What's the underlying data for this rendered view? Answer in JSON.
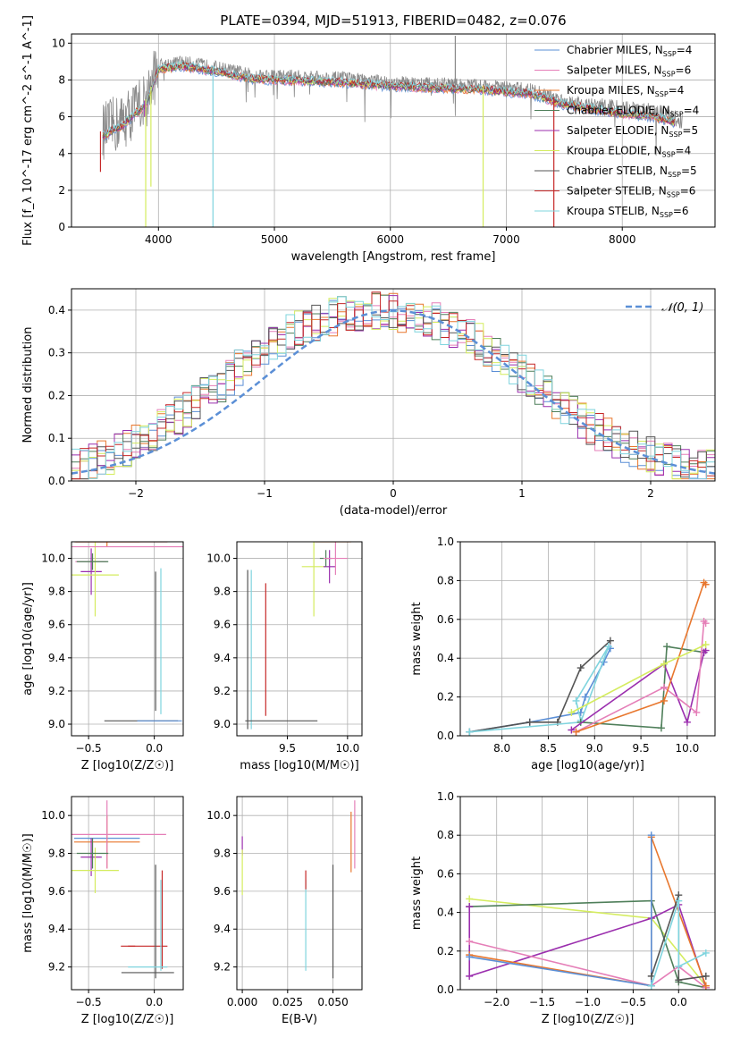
{
  "figure_title": "PLATE=0394, MJD=51913, FIBERID=0482, z=0.076",
  "colors": {
    "Chabrier MILES": "#5b8fd6",
    "Salpeter MILES": "#e57fb8",
    "Kroupa MILES": "#e8772e",
    "Chabrier ELODIE": "#4f7f5a",
    "Salpeter ELODIE": "#9b2fae",
    "Kroupa ELODIE": "#d4ec5e",
    "Chabrier STELIB": "#555555",
    "Salpeter STELIB": "#c62828",
    "Kroupa STELIB": "#7fd4de"
  },
  "chart_data": [
    {
      "id": "spectrum",
      "type": "line",
      "title": "PLATE=0394, MJD=51913, FIBERID=0482, z=0.076",
      "xlabel": "wavelength [Angstrom, rest frame]",
      "ylabel": "Flux [f_λ 10^-17 erg cm^-2 s^-1 A^-1]",
      "xlim": [
        3250,
        8800
      ],
      "ylim": [
        0,
        10.5
      ],
      "xticks": [
        4000,
        5000,
        6000,
        7000,
        8000
      ],
      "yticks": [
        0,
        2,
        4,
        6,
        8,
        10
      ],
      "legend_position": "top-right",
      "legend": [
        {
          "name": "Chabrier MILES, N_SSP=4"
        },
        {
          "name": "Salpeter MILES, N_SSP=6"
        },
        {
          "name": "Kroupa MILES, N_SSP=4"
        },
        {
          "name": "Chabrier ELODIE, N_SSP=4"
        },
        {
          "name": "Salpeter ELODIE, N_SSP=5"
        },
        {
          "name": "Kroupa ELODIE, N_SSP=4"
        },
        {
          "name": "Chabrier STELIB, N_SSP=5"
        },
        {
          "name": "Salpeter STELIB, N_SSP=6"
        },
        {
          "name": "Kroupa STELIB, N_SSP=6"
        }
      ],
      "continuum": {
        "x": [
          3520,
          3700,
          3900,
          4000,
          4200,
          4500,
          4800,
          5200,
          5600,
          6000,
          6400,
          6800,
          7200,
          7500,
          7900,
          8300,
          8500
        ],
        "y": [
          5.2,
          5.8,
          7.0,
          8.8,
          9.0,
          8.7,
          8.3,
          8.2,
          8.1,
          7.9,
          7.8,
          7.7,
          7.5,
          6.9,
          6.5,
          6.2,
          5.8
        ]
      },
      "dips": [
        {
          "x": 3890,
          "y": 0,
          "model": "Kroupa ELODIE"
        },
        {
          "x": 3935,
          "y": 2.2,
          "model": "Kroupa ELODIE"
        },
        {
          "x": 4470,
          "y": 0,
          "model": "Kroupa STELIB"
        },
        {
          "x": 6800,
          "y": 0,
          "model": "Kroupa ELODIE"
        },
        {
          "x": 7410,
          "y": 0,
          "model": "Salpeter STELIB"
        }
      ],
      "spikes": [
        {
          "x": 3500,
          "y": 3.0,
          "model": "Salpeter STELIB"
        },
        {
          "x": 3880,
          "y": 6.0,
          "model": "Salpeter ELODIE"
        },
        {
          "x": 6560,
          "y": 10.4,
          "model": "observed"
        }
      ]
    },
    {
      "id": "residuals",
      "type": "step",
      "xlabel": "(data-model)/error",
      "ylabel": "Normed distribution",
      "xlim": [
        -2.5,
        2.5
      ],
      "ylim": [
        0,
        0.45
      ],
      "xticks": [
        -2,
        -1,
        0,
        1,
        2
      ],
      "yticks": [
        0.0,
        0.1,
        0.2,
        0.3,
        0.4
      ],
      "legend_position": "top-right",
      "gaussian_label": "𝒩(0, 1)",
      "bin_edges_start": -2.5,
      "bin_width": 0.1,
      "base_values": [
        0.035,
        0.04,
        0.046,
        0.053,
        0.06,
        0.068,
        0.078,
        0.088,
        0.098,
        0.11,
        0.124,
        0.138,
        0.152,
        0.166,
        0.182,
        0.198,
        0.214,
        0.23,
        0.246,
        0.262,
        0.278,
        0.294,
        0.31,
        0.324,
        0.336,
        0.346,
        0.356,
        0.364,
        0.372,
        0.378,
        0.384,
        0.388,
        0.392,
        0.395,
        0.397,
        0.398,
        0.397,
        0.395,
        0.392,
        0.388,
        0.384,
        0.378,
        0.372,
        0.364,
        0.356,
        0.346,
        0.336,
        0.324,
        0.31,
        0.296,
        0.282,
        0.266,
        0.25,
        0.234,
        0.218,
        0.202,
        0.186,
        0.17,
        0.156,
        0.142,
        0.128,
        0.116,
        0.104,
        0.094,
        0.084,
        0.076,
        0.068,
        0.061,
        0.054,
        0.048,
        0.043,
        0.039,
        0.035,
        0.032,
        0.03
      ]
    },
    {
      "id": "age-vs-z",
      "type": "errorbar",
      "xlabel": "Z [log10(Z/Z☉)]",
      "ylabel": "age  [log10(age/yr)]",
      "xlim": [
        -0.63,
        0.22
      ],
      "ylim": [
        8.93,
        10.1
      ],
      "xticks": [
        -0.5,
        0.0
      ],
      "yticks": [
        9.0,
        9.2,
        9.4,
        9.6,
        9.8,
        10.0
      ],
      "points": [
        {
          "model": "Salpeter MILES",
          "x": -0.48,
          "y": 9.98,
          "xerr": 0.12,
          "yerr": 0.05
        },
        {
          "model": "Kroupa MILES",
          "x": -0.36,
          "y": 10.1,
          "xerr": 0.25,
          "yerr": 0.03
        },
        {
          "model": "Salpeter ELODIE",
          "x": -0.48,
          "y": 9.92,
          "xerr": 0.08,
          "yerr": 0.14
        },
        {
          "model": "Kroupa ELODIE",
          "x": -0.45,
          "y": 9.9,
          "xerr": 0.18,
          "yerr": 0.25
        },
        {
          "model": "Chabrier ELODIE",
          "x": -0.47,
          "y": 9.98,
          "xerr": 0.12,
          "yerr": 0.05
        },
        {
          "model": "Chabrier STELIB",
          "x": 0.01,
          "y": 9.5,
          "xerr": 0.0,
          "yerr": 0.42
        },
        {
          "model": "Kroupa STELIB",
          "x": 0.05,
          "y": 9.5,
          "xerr": 0.0,
          "yerr": 0.44
        },
        {
          "model": "Chabrier STELIB",
          "x": -0.1,
          "y": 9.02,
          "xerr": 0.28,
          "yerr": 0.0
        },
        {
          "model": "Salpeter STELIB",
          "x": -0.25,
          "y": 10.1,
          "xerr": 0.35,
          "yerr": 0.0
        },
        {
          "model": "Salpeter MILES",
          "x": -0.18,
          "y": 10.07,
          "xerr": 0.45,
          "yerr": 0.0
        },
        {
          "model": "Chabrier MILES",
          "x": 0.04,
          "y": 9.02,
          "xerr": 0.17,
          "yerr": 0.0
        }
      ]
    },
    {
      "id": "age-vs-mass",
      "type": "errorbar",
      "xlabel": "mass [log10(M/M☉)]",
      "ylabel": "",
      "xlim": [
        9.08,
        10.12
      ],
      "ylim": [
        8.93,
        10.1
      ],
      "xticks": [
        9.5,
        10.0
      ],
      "yticks": [
        9.0,
        9.2,
        9.4,
        9.6,
        9.8,
        10.0
      ],
      "points": [
        {
          "model": "Kroupa ELODIE",
          "x": 9.72,
          "y": 9.95,
          "xerr": 0.1,
          "yerr": 0.3
        },
        {
          "model": "Salpeter ELODIE",
          "x": 9.85,
          "y": 9.95,
          "xerr": 0.05,
          "yerr": 0.1
        },
        {
          "model": "Chabrier ELODIE",
          "x": 9.82,
          "y": 10.0,
          "xerr": 0.05,
          "yerr": 0.05
        },
        {
          "model": "Salpeter MILES",
          "x": 9.9,
          "y": 10.0,
          "xerr": 0.1,
          "yerr": 0.1
        },
        {
          "model": "Kroupa MILES",
          "x": 9.88,
          "y": 10.1,
          "xerr": 0.15,
          "yerr": 0.0
        },
        {
          "model": "Salpeter STELIB",
          "x": 9.32,
          "y": 9.45,
          "xerr": 0.0,
          "yerr": 0.4
        },
        {
          "model": "Chabrier STELIB",
          "x": 9.17,
          "y": 9.45,
          "xerr": 0.0,
          "yerr": 0.48
        },
        {
          "model": "Kroupa STELIB",
          "x": 9.2,
          "y": 9.45,
          "xerr": 0.0,
          "yerr": 0.48
        },
        {
          "model": "Chabrier STELIB",
          "x": 9.45,
          "y": 9.02,
          "xerr": 0.3,
          "yerr": 0.0
        }
      ]
    },
    {
      "id": "massweight-vs-age",
      "type": "line",
      "xlabel": "age  [log10(age/yr)]",
      "ylabel": "mass weight",
      "xlim": [
        7.55,
        10.3
      ],
      "ylim": [
        0.0,
        1.0
      ],
      "xticks": [
        8.0,
        8.5,
        9.0,
        9.5,
        10.0
      ],
      "yticks": [
        0.0,
        0.2,
        0.4,
        0.6,
        0.8,
        1.0
      ],
      "grid": true,
      "series": [
        {
          "model": "Chabrier MILES",
          "x": [
            7.65,
            8.3,
            8.85,
            8.9,
            9.1,
            9.17
          ],
          "y": [
            0.02,
            0.07,
            0.12,
            0.2,
            0.38,
            0.45
          ]
        },
        {
          "model": "Chabrier STELIB",
          "x": [
            7.65,
            8.3,
            8.6,
            8.85,
            9.17
          ],
          "y": [
            0.02,
            0.07,
            0.07,
            0.35,
            0.49
          ]
        },
        {
          "model": "Kroupa STELIB",
          "x": [
            7.65,
            8.85,
            9.15,
            8.8,
            8.85
          ],
          "y": [
            0.02,
            0.07,
            0.46,
            0.18,
            0.08
          ]
        },
        {
          "model": "Chabrier ELODIE",
          "x": [
            8.85,
            9.72,
            9.78,
            10.18
          ],
          "y": [
            0.07,
            0.04,
            0.46,
            0.43
          ]
        },
        {
          "model": "Salpeter ELODIE",
          "x": [
            8.75,
            9.75,
            10.0,
            10.18,
            10.2
          ],
          "y": [
            0.03,
            0.37,
            0.07,
            0.43,
            0.44
          ]
        },
        {
          "model": "Salpeter MILES",
          "x": [
            8.8,
            9.75,
            10.1,
            10.18,
            10.2
          ],
          "y": [
            0.02,
            0.25,
            0.12,
            0.59,
            0.58
          ]
        },
        {
          "model": "Kroupa MILES",
          "x": [
            8.8,
            9.75,
            10.18,
            10.2
          ],
          "y": [
            0.02,
            0.18,
            0.79,
            0.78
          ]
        },
        {
          "model": "Kroupa ELODIE",
          "x": [
            8.75,
            9.75,
            10.2
          ],
          "y": [
            0.12,
            0.37,
            0.47
          ]
        }
      ]
    },
    {
      "id": "mass-vs-z",
      "type": "errorbar",
      "xlabel": "Z [log10(Z/Z☉)]",
      "ylabel": "mass [log10(M/M☉)]",
      "xlim": [
        -0.63,
        0.22
      ],
      "ylim": [
        9.08,
        10.1
      ],
      "xticks": [
        -0.5,
        0.0
      ],
      "yticks": [
        9.2,
        9.4,
        9.6,
        9.8,
        10.0
      ],
      "points": [
        {
          "model": "Chabrier MILES",
          "x": -0.36,
          "y": 9.88,
          "xerr": 0.25,
          "yerr": 0.0
        },
        {
          "model": "Kroupa MILES",
          "x": -0.36,
          "y": 9.86,
          "xerr": 0.25,
          "yerr": 0.14
        },
        {
          "model": "Salpeter MILES",
          "x": -0.36,
          "y": 9.9,
          "xerr": 0.45,
          "yerr": 0.18
        },
        {
          "model": "Salpeter ELODIE",
          "x": -0.48,
          "y": 9.78,
          "xerr": 0.08,
          "yerr": 0.1
        },
        {
          "model": "Kroupa ELODIE",
          "x": -0.45,
          "y": 9.71,
          "xerr": 0.18,
          "yerr": 0.12
        },
        {
          "model": "Chabrier ELODIE",
          "x": -0.47,
          "y": 9.8,
          "xerr": 0.12,
          "yerr": 0.08
        },
        {
          "model": "Salpeter STELIB",
          "x": -0.2,
          "y": 9.31,
          "xerr": 0.0,
          "yerr": 0.0
        },
        {
          "model": "Salpeter STELIB",
          "x": -0.05,
          "y": 9.31,
          "xerr": 0.15,
          "yerr": 0.0
        },
        {
          "model": "Salpeter STELIB",
          "x": 0.06,
          "y": 9.45,
          "xerr": 0.0,
          "yerr": 0.26
        },
        {
          "model": "Chabrier STELIB",
          "x": 0.01,
          "y": 9.44,
          "xerr": 0.0,
          "yerr": 0.3
        },
        {
          "model": "Kroupa STELIB",
          "x": 0.05,
          "y": 9.42,
          "xerr": 0.0,
          "yerr": 0.24
        },
        {
          "model": "Kroupa STELIB",
          "x": -0.05,
          "y": 9.2,
          "xerr": 0.15,
          "yerr": 0.0
        },
        {
          "model": "Chabrier STELIB",
          "x": -0.05,
          "y": 9.17,
          "xerr": 0.2,
          "yerr": 0.0
        }
      ]
    },
    {
      "id": "mass-vs-ebv",
      "type": "errorbar",
      "xlabel": "E(B-V)",
      "ylabel": "",
      "xlim": [
        -0.003,
        0.066
      ],
      "ylim": [
        9.08,
        10.1
      ],
      "xticks": [
        0.0,
        0.025,
        0.05
      ],
      "yticks": [
        9.2,
        9.4,
        9.6,
        9.8,
        10.0
      ],
      "points": [
        {
          "model": "Salpeter ELODIE",
          "x": 0.0,
          "y": 9.84,
          "xerr": 0.0,
          "yerr": 0.05
        },
        {
          "model": "Kroupa ELODIE",
          "x": 0.0,
          "y": 9.7,
          "xerr": 0.0,
          "yerr": 0.12
        },
        {
          "model": "Kroupa STELIB",
          "x": 0.035,
          "y": 9.42,
          "xerr": 0.0,
          "yerr": 0.24
        },
        {
          "model": "Salpeter STELIB",
          "x": 0.035,
          "y": 9.66,
          "xerr": 0.0,
          "yerr": 0.05
        },
        {
          "model": "Chabrier STELIB",
          "x": 0.05,
          "y": 9.44,
          "xerr": 0.0,
          "yerr": 0.3
        },
        {
          "model": "Kroupa MILES",
          "x": 0.06,
          "y": 9.86,
          "xerr": 0.0,
          "yerr": 0.16
        },
        {
          "model": "Salpeter MILES",
          "x": 0.062,
          "y": 9.9,
          "xerr": 0.0,
          "yerr": 0.18
        }
      ]
    },
    {
      "id": "massweight-vs-z",
      "type": "line",
      "xlabel": "Z [log10(Z/Z☉)]",
      "ylabel": "mass weight",
      "xlim": [
        -2.4,
        0.4
      ],
      "ylim": [
        0.0,
        1.0
      ],
      "xticks": [
        -2.0,
        -1.5,
        -1.0,
        -0.5,
        0.0
      ],
      "yticks": [
        0.0,
        0.2,
        0.4,
        0.6,
        0.8,
        1.0
      ],
      "grid": true,
      "series": [
        {
          "model": "Kroupa ELODIE",
          "x": [
            -2.3,
            -0.3,
            0.3
          ],
          "y": [
            0.47,
            0.37,
            0.02
          ]
        },
        {
          "model": "Chabrier ELODIE",
          "x": [
            -2.3,
            -0.3,
            0.0,
            0.3
          ],
          "y": [
            0.43,
            0.46,
            0.04,
            0.01
          ]
        },
        {
          "model": "Salpeter ELODIE",
          "x": [
            -2.3,
            -2.3,
            -0.3,
            0.0,
            0.3
          ],
          "y": [
            0.43,
            0.07,
            0.37,
            0.44,
            0.01
          ]
        },
        {
          "model": "Salpeter MILES",
          "x": [
            -2.3,
            -0.3,
            0.0,
            0.3
          ],
          "y": [
            0.25,
            0.02,
            0.12,
            0.01
          ]
        },
        {
          "model": "Kroupa MILES",
          "x": [
            -2.3,
            -0.3,
            -0.3,
            0.3
          ],
          "y": [
            0.18,
            0.02,
            0.79,
            0.02
          ]
        },
        {
          "model": "Chabrier MILES",
          "x": [
            -2.3,
            -0.3,
            -0.3
          ],
          "y": [
            0.17,
            0.02,
            0.8
          ]
        },
        {
          "model": "Chabrier STELIB",
          "x": [
            -0.3,
            0.0,
            0.0,
            0.3
          ],
          "y": [
            0.07,
            0.49,
            0.05,
            0.07
          ]
        },
        {
          "model": "Kroupa STELIB",
          "x": [
            -0.3,
            0.0,
            0.0,
            0.3
          ],
          "y": [
            0.02,
            0.46,
            0.12,
            0.19
          ]
        }
      ]
    }
  ]
}
